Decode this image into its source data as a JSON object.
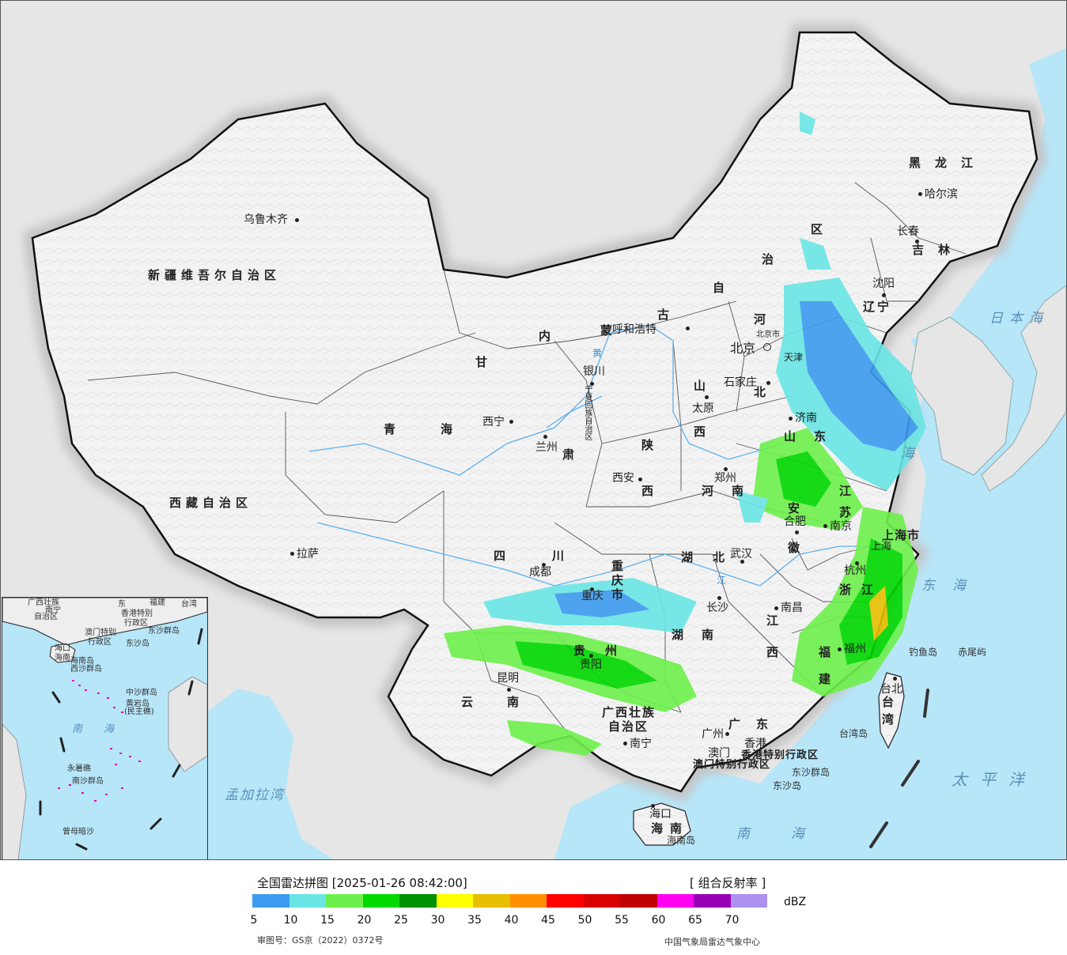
{
  "map": {
    "provinces": [
      {
        "key": "xinjiang",
        "label": "新疆维吾尔自治区"
      },
      {
        "key": "xizang",
        "label": "西藏自治区"
      },
      {
        "key": "qinghai_1",
        "label": "青"
      },
      {
        "key": "qinghai_2",
        "label": "海"
      },
      {
        "key": "gansu_1",
        "label": "甘"
      },
      {
        "key": "gansu_2",
        "label": "肃"
      },
      {
        "key": "neimeng_1",
        "label": "内"
      },
      {
        "key": "neimeng_2",
        "label": "蒙"
      },
      {
        "key": "neimeng_3",
        "label": "古"
      },
      {
        "key": "neimeng_4",
        "label": "自"
      },
      {
        "key": "neimeng_5",
        "label": "治"
      },
      {
        "key": "neimeng_6",
        "label": "区"
      },
      {
        "key": "heilongjiang",
        "label": "黑龙江"
      },
      {
        "key": "jilin",
        "label": "吉林"
      },
      {
        "key": "liaoning_1",
        "label": "辽"
      },
      {
        "key": "liaoning_2",
        "label": "宁"
      },
      {
        "key": "hebei_1",
        "label": "河"
      },
      {
        "key": "hebei_2",
        "label": "北"
      },
      {
        "key": "shanxi_1",
        "label": "山"
      },
      {
        "key": "shanxi_2",
        "label": "西"
      },
      {
        "key": "shandong_1",
        "label": "山"
      },
      {
        "key": "shandong_2",
        "label": "东"
      },
      {
        "key": "shaanxi_1",
        "label": "陕"
      },
      {
        "key": "shaanxi_2",
        "label": "西"
      },
      {
        "key": "henan_1",
        "label": "河"
      },
      {
        "key": "henan_2",
        "label": "南"
      },
      {
        "key": "jiangsu_1",
        "label": "江"
      },
      {
        "key": "jiangsu_2",
        "label": "苏"
      },
      {
        "key": "anhui_1",
        "label": "安"
      },
      {
        "key": "anhui_2",
        "label": "徽"
      },
      {
        "key": "sichuan_1",
        "label": "四"
      },
      {
        "key": "sichuan_2",
        "label": "川"
      },
      {
        "key": "hubei_1",
        "label": "湖"
      },
      {
        "key": "hubei_2",
        "label": "北"
      },
      {
        "key": "hunan_1",
        "label": "湖"
      },
      {
        "key": "hunan_2",
        "label": "南"
      },
      {
        "key": "jiangxi_1",
        "label": "江"
      },
      {
        "key": "jiangxi_2",
        "label": "西"
      },
      {
        "key": "zhejiang_1",
        "label": "浙"
      },
      {
        "key": "zhejiang_2",
        "label": "江"
      },
      {
        "key": "fujian_1",
        "label": "福"
      },
      {
        "key": "fujian_2",
        "label": "建"
      },
      {
        "key": "guizhou_1",
        "label": "贵"
      },
      {
        "key": "guizhou_2",
        "label": "州"
      },
      {
        "key": "yunnan_1",
        "label": "云"
      },
      {
        "key": "yunnan_2",
        "label": "南"
      },
      {
        "key": "guangxi_1",
        "label": "广西壮族"
      },
      {
        "key": "guangxi_2",
        "label": "自治区"
      },
      {
        "key": "guangdong_1",
        "label": "广"
      },
      {
        "key": "guangdong_2",
        "label": "东"
      },
      {
        "key": "hainan_1",
        "label": "海"
      },
      {
        "key": "hainan_2",
        "label": "南"
      },
      {
        "key": "taiwan_1",
        "label": "台"
      },
      {
        "key": "taiwan_2",
        "label": "湾"
      },
      {
        "key": "chongqing_1",
        "label": "重"
      },
      {
        "key": "chongqing_2",
        "label": "庆"
      },
      {
        "key": "chongqing_3",
        "label": "市"
      },
      {
        "key": "shanghai",
        "label": "上海市"
      },
      {
        "key": "ningxia",
        "label": "宁夏回族自治区"
      },
      {
        "key": "hk",
        "label": "香港特别行政区"
      },
      {
        "key": "macau",
        "label": "澳门特别行政区"
      }
    ],
    "cities": [
      {
        "key": "urumqi",
        "label": "乌鲁木齐"
      },
      {
        "key": "lhasa",
        "label": "拉萨"
      },
      {
        "key": "xining",
        "label": "西宁"
      },
      {
        "key": "lanzhou",
        "label": "兰州"
      },
      {
        "key": "yinchuan",
        "label": "银川"
      },
      {
        "key": "hohhot",
        "label": "呼和浩特"
      },
      {
        "key": "harbin",
        "label": "哈尔滨"
      },
      {
        "key": "changchun",
        "label": "长春"
      },
      {
        "key": "shenyang",
        "label": "沈阳"
      },
      {
        "key": "beijing",
        "label": "北京"
      },
      {
        "key": "beijing_city",
        "label": "北京市"
      },
      {
        "key": "tianjin",
        "label": "天津"
      },
      {
        "key": "shijiazhuang",
        "label": "石家庄"
      },
      {
        "key": "taiyuan",
        "label": "太原"
      },
      {
        "key": "jinan",
        "label": "济南"
      },
      {
        "key": "zhengzhou",
        "label": "郑州"
      },
      {
        "key": "xian",
        "label": "西安"
      },
      {
        "key": "hefei",
        "label": "合肥"
      },
      {
        "key": "nanjing",
        "label": "南京"
      },
      {
        "key": "shanghai_city",
        "label": "上海"
      },
      {
        "key": "hangzhou",
        "label": "杭州"
      },
      {
        "key": "wuhan",
        "label": "武汉"
      },
      {
        "key": "chengdu",
        "label": "成都"
      },
      {
        "key": "chongqing",
        "label": "重庆"
      },
      {
        "key": "changsha",
        "label": "长沙"
      },
      {
        "key": "nanchang",
        "label": "南昌"
      },
      {
        "key": "fuzhou",
        "label": "福州"
      },
      {
        "key": "guiyang",
        "label": "贵阳"
      },
      {
        "key": "kunming",
        "label": "昆明"
      },
      {
        "key": "nanning",
        "label": "南宁"
      },
      {
        "key": "guangzhou",
        "label": "广州"
      },
      {
        "key": "hongkong",
        "label": "香港"
      },
      {
        "key": "macao",
        "label": "澳门"
      },
      {
        "key": "haikou",
        "label": "海口"
      },
      {
        "key": "taipei",
        "label": "台北"
      }
    ],
    "seas": [
      {
        "key": "riben",
        "label": "日本海"
      },
      {
        "key": "huanghai",
        "label": "海"
      },
      {
        "key": "donghai",
        "label": "东海"
      },
      {
        "key": "taipingyang",
        "label": "太平洋"
      },
      {
        "key": "nanhai",
        "label": "南海"
      },
      {
        "key": "mengjiala",
        "label": "孟加拉湾"
      }
    ],
    "islands": [
      {
        "key": "diaoyu",
        "label": "钓鱼岛"
      },
      {
        "key": "chiwei",
        "label": "赤尾屿"
      },
      {
        "key": "taiwan_dao",
        "label": "台湾岛"
      },
      {
        "key": "dongsha_qd",
        "label": "东沙群岛"
      },
      {
        "key": "dongsha",
        "label": "东沙岛"
      },
      {
        "key": "hainan_dao",
        "label": "海南岛"
      }
    ],
    "rivers": [
      {
        "key": "huanghe",
        "label": "黄"
      },
      {
        "key": "jiang",
        "label": "江"
      }
    ],
    "inset": {
      "labels": [
        {
          "key": "guangxi",
          "label": "广西壮族"
        },
        {
          "key": "zizhiqu",
          "label": "自治区"
        },
        {
          "key": "nanning",
          "label": "南宁"
        },
        {
          "key": "guangdong",
          "label": "东"
        },
        {
          "key": "fujian",
          "label": "福建"
        },
        {
          "key": "taiwan",
          "label": "台湾"
        },
        {
          "key": "hk",
          "label": "香港特别"
        },
        {
          "key": "hk2",
          "label": "行政区"
        },
        {
          "key": "macau",
          "label": "澳门特别"
        },
        {
          "key": "macau2",
          "label": "行政区"
        },
        {
          "key": "dongsha_qd",
          "label": "东沙群岛"
        },
        {
          "key": "dongsha",
          "label": "东沙岛"
        },
        {
          "key": "haikou",
          "label": "海口"
        },
        {
          "key": "hainan",
          "label": "海南"
        },
        {
          "key": "hainan_dao",
          "label": "海南岛"
        },
        {
          "key": "xisha",
          "label": "西沙群岛"
        },
        {
          "key": "zhongsha",
          "label": "中沙群岛"
        },
        {
          "key": "huangyan",
          "label": "黄岩岛"
        },
        {
          "key": "minzhu",
          "label": "(民主礁)"
        },
        {
          "key": "nanhai_1",
          "label": "南"
        },
        {
          "key": "nanhai_2",
          "label": "海"
        },
        {
          "key": "yongshu",
          "label": "永暑礁"
        },
        {
          "key": "nansha",
          "label": "南沙群岛"
        },
        {
          "key": "zengmu",
          "label": "曾母暗沙"
        }
      ]
    }
  },
  "legend": {
    "title": "全国雷达拼图 [2025-01-26 08:42:00]",
    "product": "[ 组合反射率 ]",
    "unit": "dBZ",
    "colors": [
      "#3d9bef",
      "#6ae5e5",
      "#6ef04c",
      "#00d800",
      "#009000",
      "#ffff00",
      "#e6c000",
      "#ff9000",
      "#ff0000",
      "#d80000",
      "#c00000",
      "#ff00f0",
      "#9600b4",
      "#ad90f0"
    ],
    "ticks": [
      "5",
      "10",
      "15",
      "20",
      "25",
      "30",
      "35",
      "40",
      "45",
      "50",
      "55",
      "60",
      "65",
      "70"
    ],
    "approval": "审图号：GS京（2022）0372号",
    "source": "中国气象局雷达气象中心"
  }
}
